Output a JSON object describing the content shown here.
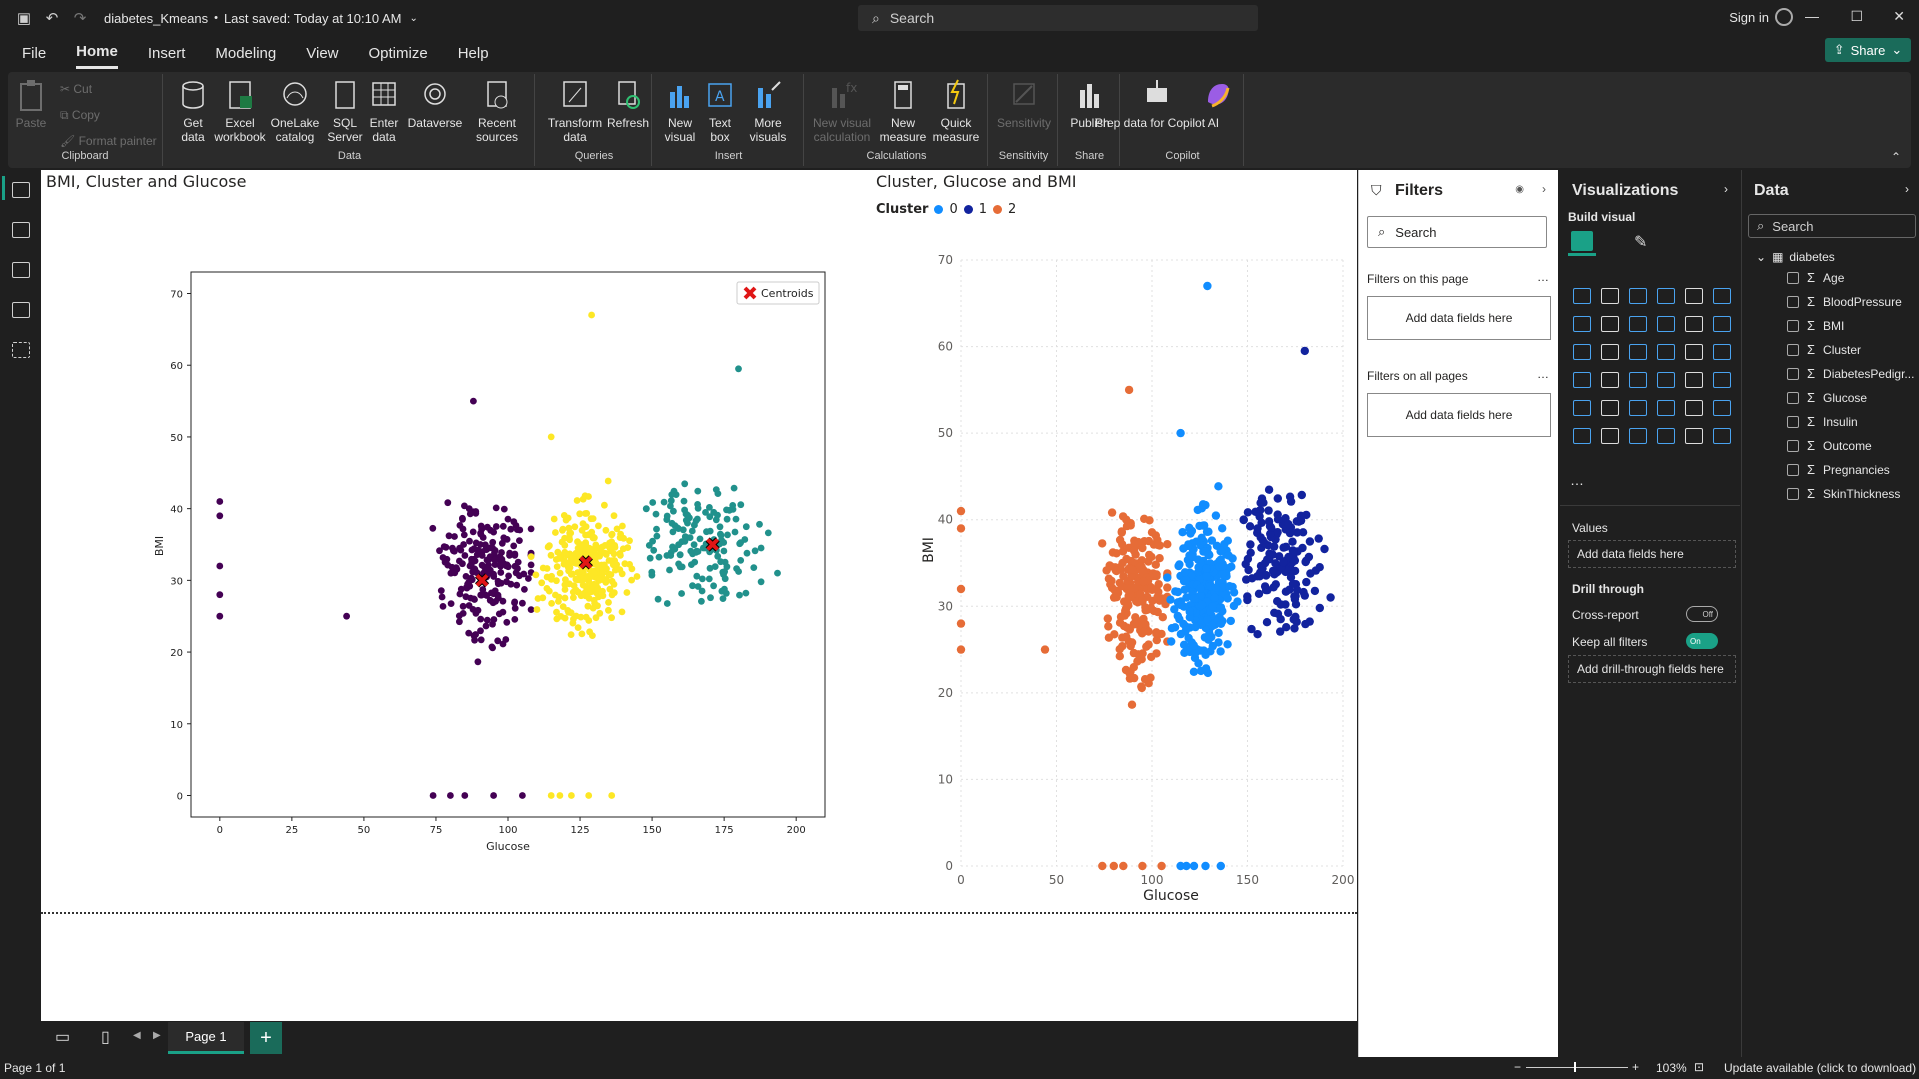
{
  "titlebar": {
    "doc_title": "diabetes_Kmeans",
    "save_status": "Last saved: Today at 10:10 AM",
    "search_placeholder": "Search",
    "sign_in": "Sign in",
    "share": "Share"
  },
  "menu": [
    "File",
    "Home",
    "Insert",
    "Modeling",
    "View",
    "Optimize",
    "Help"
  ],
  "ribbon": {
    "clipboard": {
      "label": "Clipboard",
      "paste": "Paste",
      "cut": "Cut",
      "copy": "Copy",
      "format_painter": "Format painter"
    },
    "data": {
      "label": "Data",
      "get_data": "Get data",
      "excel": "Excel workbook",
      "onelake": "OneLake catalog",
      "sql": "SQL Server",
      "enter": "Enter data",
      "dataverse": "Dataverse",
      "recent": "Recent sources"
    },
    "queries": {
      "label": "Queries",
      "transform": "Transform data",
      "refresh": "Refresh"
    },
    "insert": {
      "label": "Insert",
      "new_visual": "New visual",
      "text_box": "Text box",
      "more_visuals": "More visuals"
    },
    "calculations": {
      "label": "Calculations",
      "new_visual_calc": "New visual calculation",
      "new_measure": "New measure",
      "quick_measure": "Quick measure"
    },
    "sensitivity": {
      "label": "Sensitivity",
      "btn": "Sensitivity"
    },
    "share": {
      "label": "Share",
      "publish": "Publish"
    },
    "copilot": {
      "label": "Copilot",
      "prep": "Prep data for Copilot AI"
    }
  },
  "chart1": {
    "title": "BMI, Cluster and Glucose",
    "legend": "Centroids",
    "xlabel": "Glucose",
    "ylabel": "BMI",
    "xticks": [
      "0",
      "25",
      "50",
      "75",
      "100",
      "125",
      "150",
      "175",
      "200"
    ],
    "yticks": [
      "0",
      "10",
      "20",
      "30",
      "40",
      "50",
      "60",
      "70"
    ]
  },
  "chart2": {
    "title": "Cluster, Glucose and BMI",
    "legend_title": "Cluster",
    "legend": [
      "0",
      "1",
      "2"
    ],
    "xlabel": "Glucose",
    "ylabel": "BMI",
    "xticks": [
      "0",
      "50",
      "100",
      "150",
      "200"
    ],
    "yticks": [
      "0",
      "10",
      "20",
      "30",
      "40",
      "50",
      "60",
      "70"
    ]
  },
  "chart_data": [
    {
      "type": "scatter",
      "title": "BMI, Cluster and Glucose",
      "xlabel": "Glucose",
      "ylabel": "BMI",
      "xlim": [
        -10,
        210
      ],
      "ylim": [
        -3,
        73
      ],
      "series": [
        {
          "name": "Centroids",
          "color": "#e01616",
          "points": [
            [
              91,
              30
            ],
            [
              127,
              32.5
            ],
            [
              171,
              35
            ]
          ]
        }
      ],
      "cluster_colors": [
        "#440154",
        "#fde725",
        "#21918c"
      ]
    },
    {
      "type": "scatter",
      "title": "Cluster, Glucose and BMI",
      "xlabel": "Glucose",
      "ylabel": "BMI",
      "xlim": [
        0,
        200
      ],
      "ylim": [
        0,
        70
      ],
      "series": [
        {
          "name": "0",
          "color": "#118DFF"
        },
        {
          "name": "1",
          "color": "#12239E"
        },
        {
          "name": "2",
          "color": "#E66C37"
        }
      ]
    }
  ],
  "page": {
    "tab": "Page 1",
    "status": "Page 1 of 1",
    "zoom": "103%",
    "update": "Update available (click to download)"
  },
  "filters": {
    "title": "Filters",
    "search": "Search",
    "on_page": "Filters on this page",
    "on_all": "Filters on all pages",
    "add1": "Add data fields here",
    "add2": "Add data fields here"
  },
  "viz": {
    "title": "Visualizations",
    "build": "Build visual",
    "values": "Values",
    "add_values": "Add data fields here",
    "drill": "Drill through",
    "cross": "Cross-report",
    "keep": "Keep all filters",
    "add_drill": "Add drill-through fields here",
    "off": "Off",
    "on": "On"
  },
  "data_pane": {
    "title": "Data",
    "search": "Search",
    "table": "diabetes",
    "fields": [
      "Age",
      "BloodPressure",
      "BMI",
      "Cluster",
      "DiabetesPedigr...",
      "Glucose",
      "Insulin",
      "Outcome",
      "Pregnancies",
      "SkinThickness"
    ]
  },
  "colors": {
    "accent": "#1aa187",
    "share": "#1a6b5a"
  }
}
